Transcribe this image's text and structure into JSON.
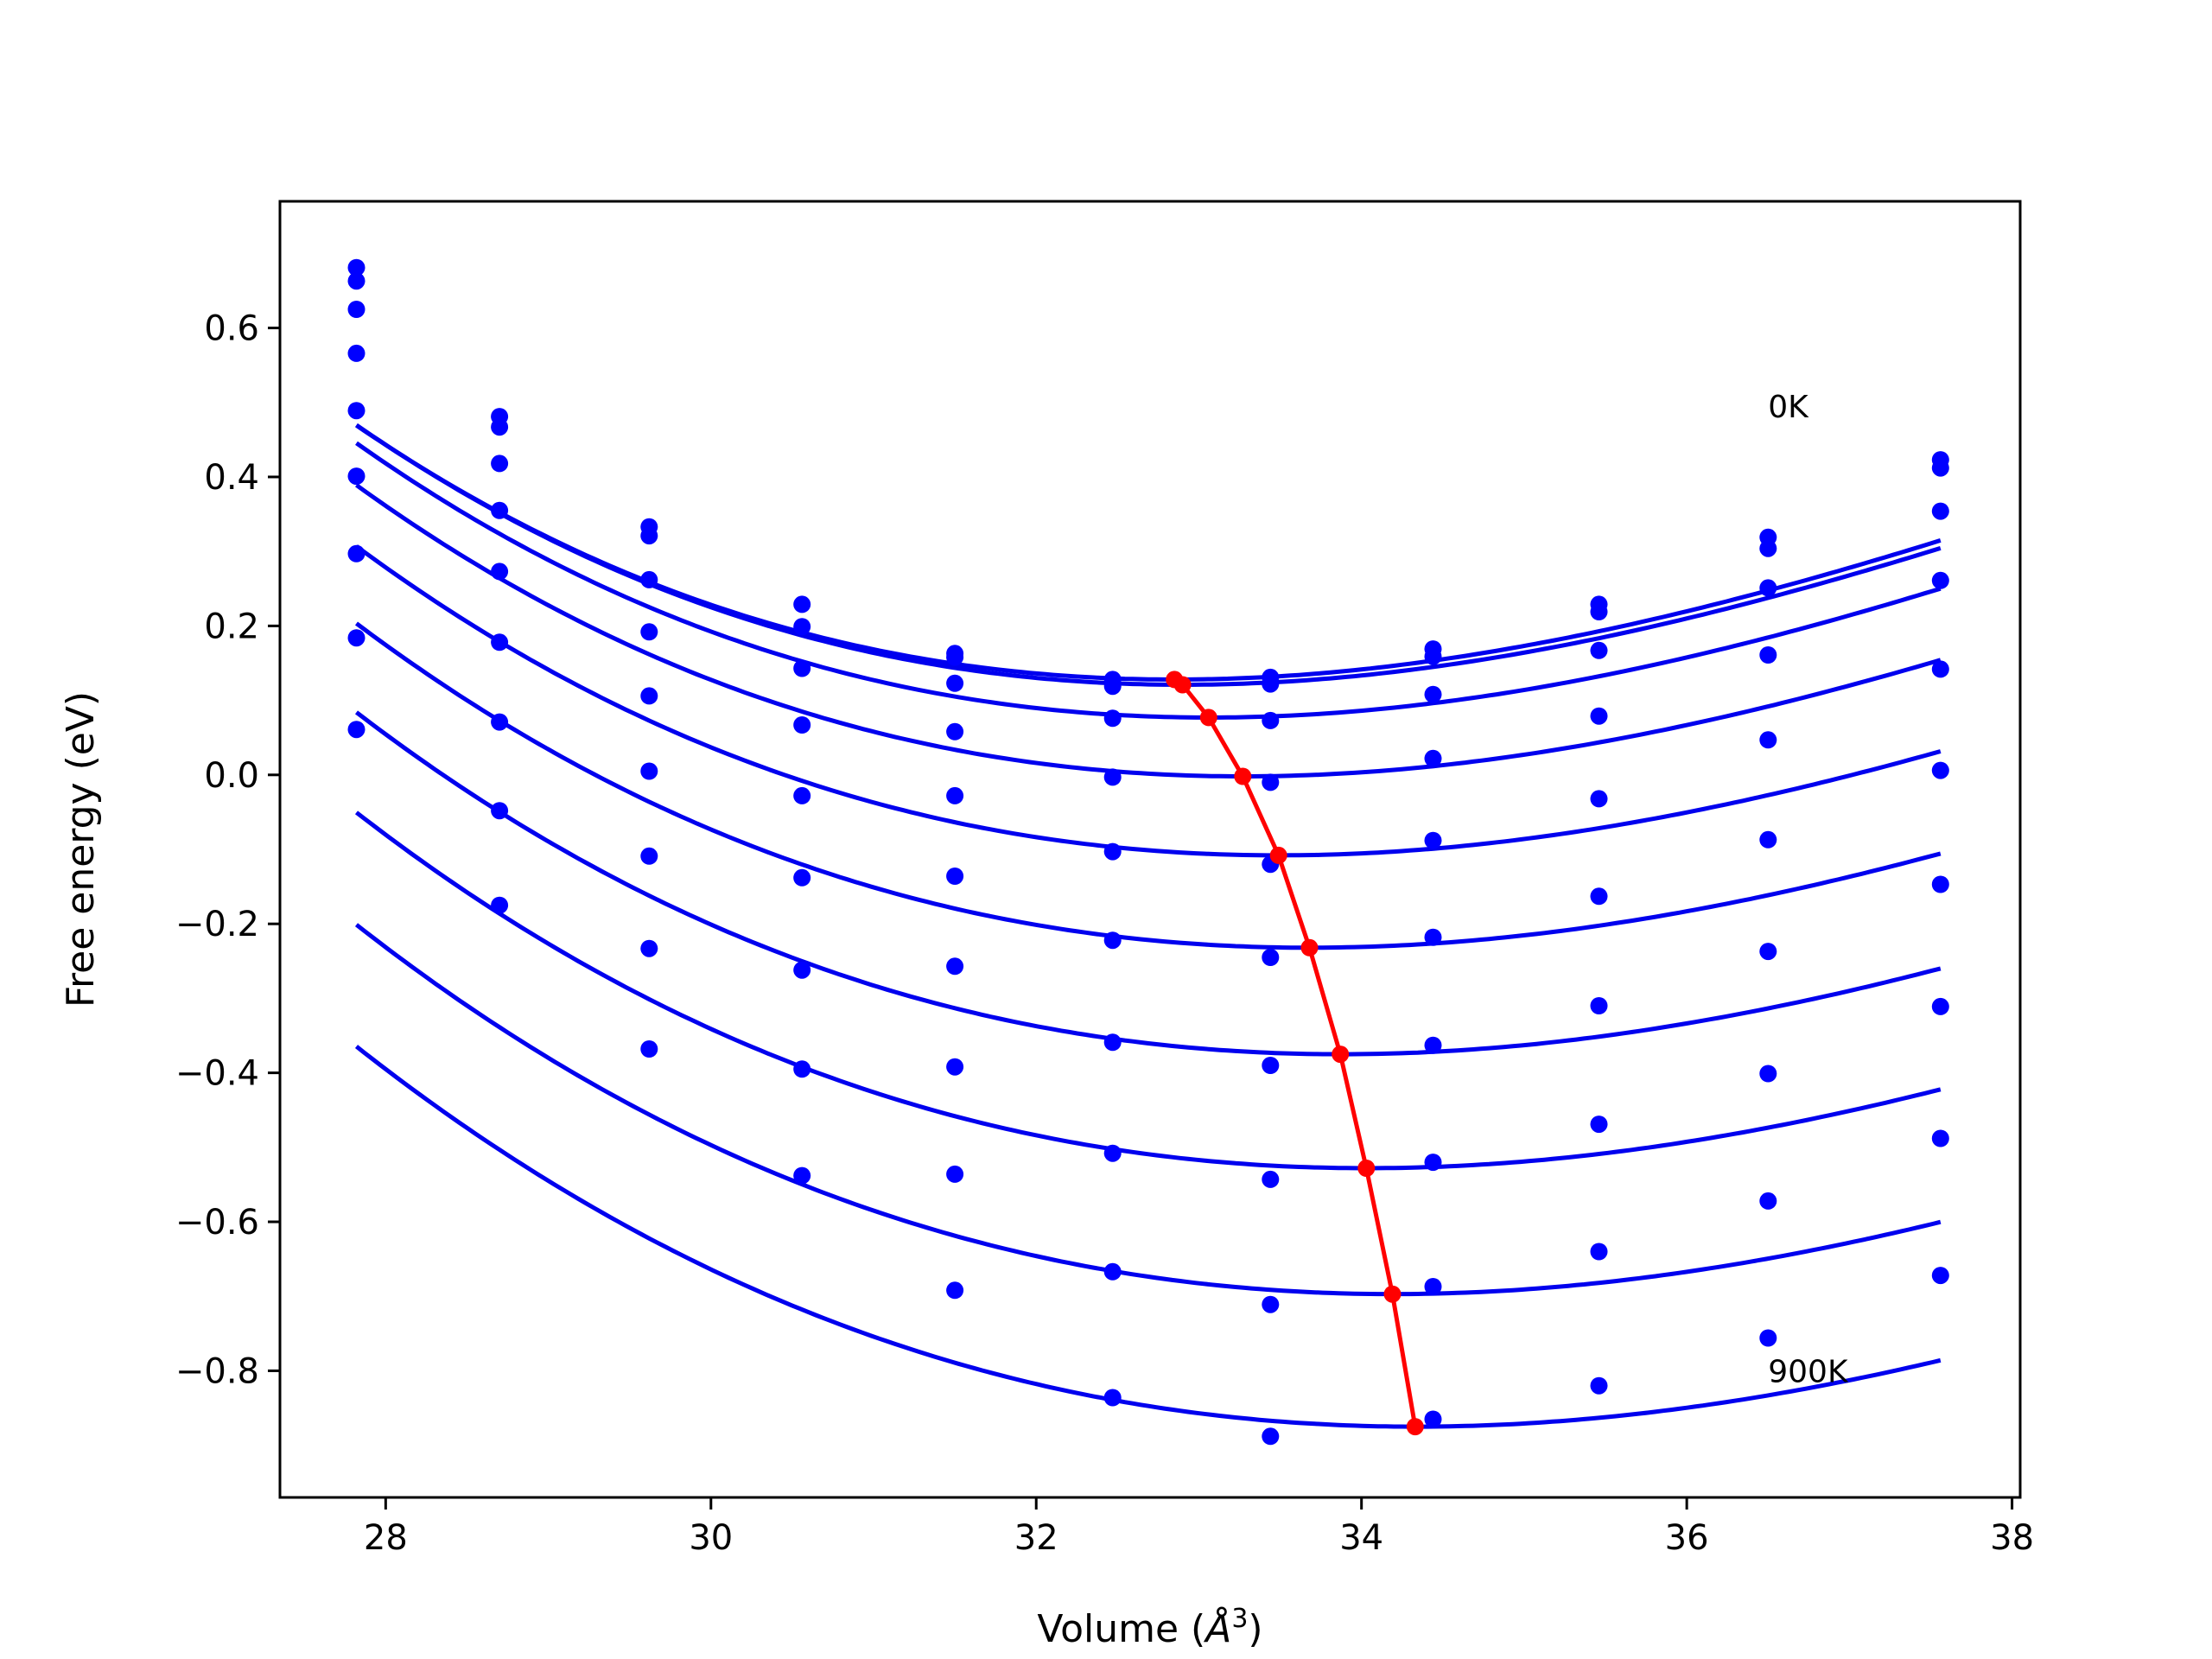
{
  "chart_data": {
    "type": "line",
    "xlabel_main": "Volume (",
    "xlabel_unit": "Å",
    "xlabel_exp": "3",
    "xlabel_close": ")",
    "ylabel": "Free energy (eV)",
    "xlim": [
      27.35,
      38.05
    ],
    "ylim": [
      -0.97,
      0.77
    ],
    "xticks": [
      28,
      30,
      32,
      34,
      36,
      38
    ],
    "yticks": [
      0.6,
      0.4,
      0.2,
      0.0,
      -0.2,
      -0.4,
      -0.6,
      -0.8
    ],
    "ytick_labels": [
      "0.6",
      "0.4",
      "0.2",
      "0.0",
      "−0.2",
      "−0.4",
      "−0.6",
      "−0.8"
    ],
    "annotations": [
      {
        "text": "0K",
        "x": 36.5,
        "y": 0.48
      },
      {
        "text": "900K",
        "x": 36.5,
        "y": -0.815
      }
    ],
    "curve_color": "#0000ee",
    "point_color": "#0000ff",
    "min_color": "#ff0000",
    "volumes": [
      27.82,
      28.7,
      29.62,
      30.56,
      31.5,
      32.47,
      33.44,
      34.44,
      35.46,
      36.5,
      37.56
    ],
    "series": [
      {
        "fit": {
          "v0": 32.85,
          "f0": 0.128,
          "a": 0.01087,
          "b": -0.00052
        },
        "points": [
          0.681,
          0.481,
          0.333,
          0.229,
          0.163,
          0.128,
          0.131,
          0.169,
          0.229,
          0.319,
          0.423
        ]
      },
      {
        "fit": {
          "v0": 32.9,
          "f0": 0.121,
          "a": 0.01087,
          "b": -0.00052
        },
        "points": [
          0.663,
          0.467,
          0.321,
          0.199,
          0.158,
          0.119,
          0.122,
          0.159,
          0.219,
          0.304,
          0.412
        ]
      },
      {
        "fit": {
          "v0": 33.06,
          "f0": 0.077,
          "a": 0.0108,
          "b": -0.0005
        },
        "points": [
          0.625,
          0.418,
          0.262,
          0.143,
          0.123,
          0.076,
          0.073,
          0.108,
          0.167,
          0.251,
          0.354
        ]
      },
      {
        "fit": {
          "v0": 33.27,
          "f0": -0.002,
          "a": 0.01055,
          "b": -0.00048
        },
        "points": [
          0.566,
          0.355,
          0.192,
          0.067,
          0.058,
          -0.003,
          -0.01,
          0.022,
          0.079,
          0.161,
          0.261
        ]
      },
      {
        "fit": {
          "v0": 33.49,
          "f0": -0.108,
          "a": 0.0103,
          "b": -0.00046
        },
        "points": [
          0.489,
          0.273,
          0.106,
          -0.028,
          -0.028,
          -0.103,
          -0.12,
          -0.088,
          -0.032,
          0.047,
          0.142
        ]
      },
      {
        "fit": {
          "v0": 33.68,
          "f0": -0.232,
          "a": 0.0101,
          "b": -0.00044
        },
        "points": [
          0.401,
          0.178,
          0.005,
          -0.138,
          -0.136,
          -0.222,
          -0.245,
          -0.218,
          -0.163,
          -0.087,
          0.006
        ]
      },
      {
        "fit": {
          "v0": 33.87,
          "f0": -0.375,
          "a": 0.01,
          "b": -0.00042
        },
        "points": [
          0.297,
          0.071,
          -0.109,
          -0.262,
          -0.257,
          -0.359,
          -0.39,
          -0.363,
          -0.31,
          -0.237,
          -0.147
        ]
      },
      {
        "fit": {
          "v0": 34.03,
          "f0": -0.528,
          "a": 0.0099,
          "b": -0.0004
        },
        "points": [
          0.184,
          -0.048,
          -0.233,
          -0.395,
          -0.392,
          -0.508,
          -0.543,
          -0.52,
          -0.469,
          -0.401,
          -0.311
        ]
      },
      {
        "fit": {
          "v0": 34.19,
          "f0": -0.697,
          "a": 0.0098,
          "b": -0.00038
        },
        "points": [
          0.061,
          -0.175,
          -0.368,
          -0.538,
          -0.536,
          -0.667,
          -0.711,
          -0.687,
          -0.64,
          -0.572,
          -0.488
        ]
      },
      {
        "fit": {
          "v0": 34.33,
          "f0": -0.875,
          "a": 0.0097,
          "b": -0.00036
        },
        "points": [
          null,
          null,
          null,
          null,
          -0.692,
          -0.836,
          -0.888,
          -0.865,
          -0.82,
          -0.756,
          -0.672
        ]
      }
    ],
    "minima": {
      "x": [
        32.85,
        32.9,
        33.06,
        33.27,
        33.49,
        33.68,
        33.87,
        34.03,
        34.19,
        34.33
      ],
      "y": [
        0.128,
        0.121,
        0.077,
        -0.002,
        -0.108,
        -0.232,
        -0.375,
        -0.528,
        -0.697,
        -0.875
      ]
    }
  }
}
